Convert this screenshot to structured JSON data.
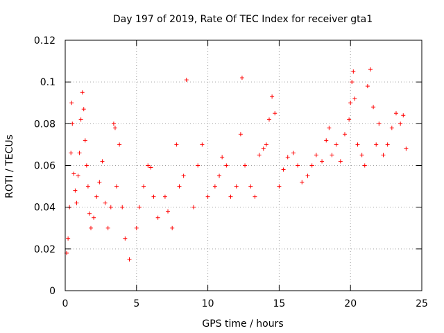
{
  "chart_data": {
    "type": "scatter",
    "title": "Day 197 of 2019, Rate Of TEC Index for receiver gta1",
    "xlabel": "GPS time / hours",
    "ylabel": "ROTI / TECUs",
    "xlim": [
      0,
      25
    ],
    "ylim": [
      0,
      0.12
    ],
    "xticks": [
      0,
      5,
      10,
      15,
      20,
      25
    ],
    "xtick_labels": [
      "0",
      "5",
      "10",
      "15",
      "20",
      "25"
    ],
    "yticks": [
      0,
      0.02,
      0.04,
      0.06,
      0.08,
      0.1,
      0.12
    ],
    "ytick_labels": [
      "0",
      "0.02",
      "0.04",
      "0.06",
      "0.08",
      "0.1",
      "0.12"
    ],
    "grid": true,
    "marker": "+",
    "color": "#ff0000",
    "series": [
      {
        "name": "ROTI",
        "x": [
          0.1,
          0.2,
          0.3,
          0.4,
          0.45,
          0.5,
          0.6,
          0.7,
          0.8,
          0.9,
          1.0,
          1.1,
          1.2,
          1.3,
          1.4,
          1.5,
          1.6,
          1.7,
          1.8,
          2.0,
          2.2,
          2.4,
          2.6,
          2.8,
          3.0,
          3.2,
          3.4,
          3.5,
          3.6,
          3.8,
          4.0,
          4.2,
          4.5,
          5.0,
          5.2,
          5.5,
          5.8,
          6.0,
          6.2,
          6.5,
          7.0,
          7.2,
          7.5,
          7.8,
          8.0,
          8.3,
          8.5,
          9.0,
          9.3,
          9.6,
          10.0,
          10.5,
          10.8,
          11.0,
          11.3,
          11.6,
          12.0,
          12.3,
          12.4,
          12.6,
          13.0,
          13.3,
          13.6,
          13.9,
          14.1,
          14.3,
          14.5,
          14.7,
          15.0,
          15.3,
          15.6,
          16.0,
          16.3,
          16.6,
          17.0,
          17.3,
          17.6,
          18.0,
          18.3,
          18.5,
          18.7,
          19.0,
          19.3,
          19.6,
          19.9,
          20.0,
          20.1,
          20.2,
          20.3,
          20.5,
          20.8,
          21.0,
          21.2,
          21.4,
          21.6,
          21.8,
          22.0,
          22.3,
          22.6,
          22.9,
          23.2,
          23.5,
          23.7,
          23.9
        ],
        "y": [
          0.018,
          0.025,
          0.04,
          0.066,
          0.09,
          0.08,
          0.056,
          0.048,
          0.042,
          0.055,
          0.066,
          0.082,
          0.095,
          0.087,
          0.072,
          0.06,
          0.05,
          0.037,
          0.03,
          0.035,
          0.045,
          0.052,
          0.062,
          0.042,
          0.03,
          0.04,
          0.08,
          0.078,
          0.05,
          0.07,
          0.04,
          0.025,
          0.015,
          0.03,
          0.04,
          0.05,
          0.06,
          0.059,
          0.045,
          0.035,
          0.045,
          0.038,
          0.03,
          0.07,
          0.05,
          0.055,
          0.101,
          0.04,
          0.06,
          0.07,
          0.045,
          0.05,
          0.055,
          0.064,
          0.06,
          0.045,
          0.05,
          0.075,
          0.102,
          0.06,
          0.05,
          0.045,
          0.065,
          0.068,
          0.07,
          0.082,
          0.093,
          0.085,
          0.05,
          0.058,
          0.064,
          0.066,
          0.06,
          0.052,
          0.055,
          0.06,
          0.065,
          0.062,
          0.072,
          0.078,
          0.065,
          0.07,
          0.062,
          0.075,
          0.082,
          0.09,
          0.1,
          0.105,
          0.092,
          0.07,
          0.065,
          0.06,
          0.098,
          0.106,
          0.088,
          0.07,
          0.08,
          0.065,
          0.07,
          0.078,
          0.085,
          0.08,
          0.084,
          0.068
        ]
      }
    ]
  }
}
